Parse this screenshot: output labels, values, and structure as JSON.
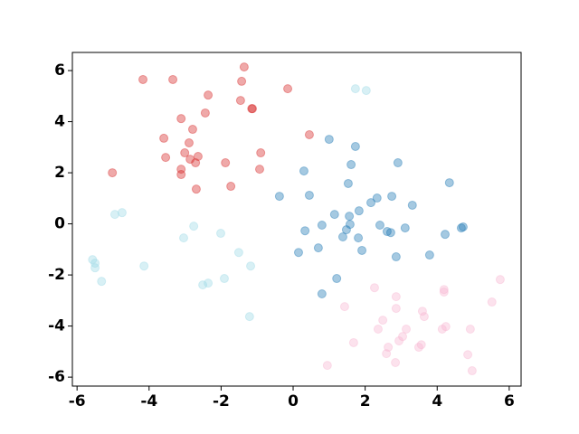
{
  "chart_data": {
    "type": "scatter",
    "xlim": [
      -6.13,
      6.33
    ],
    "ylim": [
      -6.35,
      6.71
    ],
    "xticks": [
      -6,
      -4,
      -2,
      0,
      2,
      4,
      6
    ],
    "yticks": [
      -6,
      -4,
      -2,
      0,
      2,
      4,
      6
    ],
    "series": [
      {
        "color": "#d62728",
        "x": [
          -4.17,
          -3.34,
          -1.36,
          -1.43,
          -0.15,
          -2.36,
          -1.46,
          -1.15,
          -1.13,
          -2.44,
          -3.11,
          0.45,
          -3.59,
          -2.79,
          -2.89,
          -0.9,
          -3.54,
          -3.01,
          -2.86,
          -2.64,
          -1.88,
          -2.71,
          -3.11,
          -0.93,
          -5.02,
          -3.11,
          -1.73,
          -2.69
        ],
        "y": [
          5.65,
          5.65,
          6.14,
          5.58,
          5.29,
          5.04,
          4.83,
          4.51,
          4.51,
          4.34,
          4.12,
          3.49,
          3.35,
          3.7,
          3.17,
          2.78,
          2.6,
          2.78,
          2.53,
          2.64,
          2.39,
          2.39,
          2.14,
          2.14,
          2.0,
          1.93,
          1.47,
          1.36
        ]
      },
      {
        "color": "#1f77b4",
        "x": [
          1.0,
          1.73,
          2.91,
          1.61,
          0.3,
          4.34,
          1.53,
          -0.38,
          0.45,
          2.74,
          2.33,
          2.16,
          3.31,
          1.83,
          1.15,
          1.56,
          0.8,
          2.41,
          1.58,
          3.11,
          1.48,
          0.33,
          2.61,
          2.71,
          4.67,
          4.72,
          1.38,
          1.81,
          4.22,
          0.7,
          0.15,
          1.91,
          3.79,
          2.86,
          1.21,
          0.8
        ],
        "y": [
          3.31,
          3.03,
          2.39,
          2.32,
          2.07,
          1.61,
          1.58,
          1.08,
          1.12,
          1.08,
          1.01,
          0.83,
          0.73,
          0.51,
          0.37,
          0.3,
          -0.05,
          -0.05,
          -0.02,
          -0.16,
          -0.23,
          -0.27,
          -0.3,
          -0.34,
          -0.16,
          -0.12,
          -0.51,
          -0.55,
          -0.41,
          -0.94,
          -1.12,
          -1.04,
          -1.22,
          -1.29,
          -2.14,
          -2.74
        ]
      },
      {
        "color": "#9edae5",
        "x": [
          1.73,
          2.03,
          -4.75,
          -4.95,
          -2.76,
          -2.01,
          -3.04,
          -1.51,
          -5.57,
          -5.5,
          -5.5,
          -4.14,
          -1.18,
          -5.32,
          -1.91,
          -2.36,
          -2.51,
          -1.21
        ],
        "y": [
          5.29,
          5.22,
          0.44,
          0.37,
          -0.09,
          -0.37,
          -0.55,
          -1.12,
          -1.4,
          -1.54,
          -1.72,
          -1.65,
          -1.65,
          -2.25,
          -2.14,
          -2.32,
          -2.39,
          -3.63
        ]
      },
      {
        "color": "#f7b6d2",
        "x": [
          5.75,
          2.26,
          4.19,
          4.19,
          2.86,
          1.43,
          2.86,
          5.52,
          3.59,
          3.64,
          2.49,
          3.14,
          2.36,
          4.24,
          4.14,
          4.92,
          3.04,
          2.94,
          3.56,
          3.49,
          1.68,
          2.64,
          2.59,
          4.85,
          2.84,
          0.95,
          4.97
        ],
        "y": [
          -2.18,
          -2.5,
          -2.57,
          -2.67,
          -2.85,
          -3.24,
          -3.31,
          -3.06,
          -3.42,
          -3.63,
          -3.77,
          -4.12,
          -4.12,
          -4.02,
          -4.12,
          -4.12,
          -4.41,
          -4.58,
          -4.73,
          -4.83,
          -4.65,
          -4.83,
          -5.08,
          -5.12,
          -5.43,
          -5.54,
          -5.75
        ]
      }
    ]
  }
}
